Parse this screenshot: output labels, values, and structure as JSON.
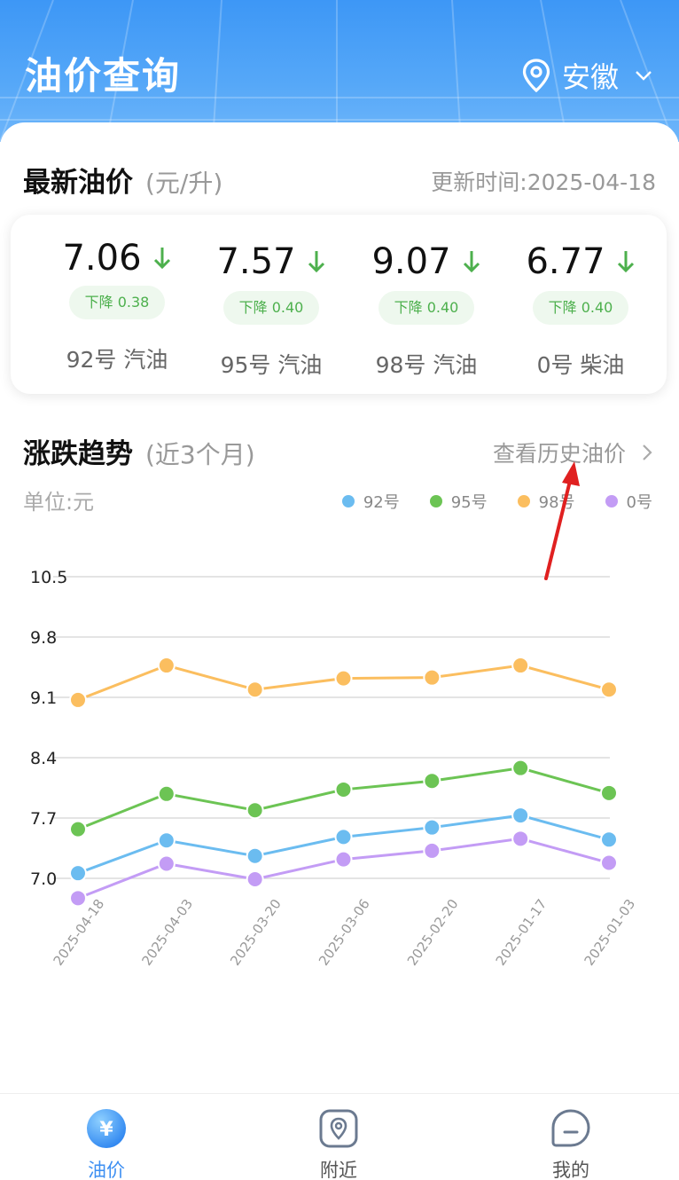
{
  "header": {
    "title": "油价查询",
    "region": "安徽"
  },
  "latest": {
    "title": "最新油价",
    "unit": "(元/升)",
    "update_time": "更新时间:2025-04-18",
    "items": [
      {
        "price": "7.06",
        "change": "下降 0.38",
        "name": "92号 汽油"
      },
      {
        "price": "7.57",
        "change": "下降 0.40",
        "name": "95号 汽油"
      },
      {
        "price": "9.07",
        "change": "下降 0.40",
        "name": "98号 汽油"
      },
      {
        "price": "6.77",
        "change": "下降 0.40",
        "name": "0号 柴油"
      }
    ]
  },
  "trend": {
    "title": "涨跌趋势",
    "range": "(近3个月)",
    "history_link": "查看历史油价",
    "unit": "单位:元"
  },
  "chart_data": {
    "type": "line",
    "x": [
      "2025-04-18",
      "2025-04-03",
      "2025-03-20",
      "2025-03-06",
      "2025-02-20",
      "2025-01-17",
      "2025-01-03"
    ],
    "y_ticks": [
      "7.0",
      "7.7",
      "8.4",
      "9.1",
      "9.8",
      "10.5"
    ],
    "ylim": [
      6.5,
      10.5
    ],
    "grid": true,
    "legend_position": "top-right",
    "series": [
      {
        "name": "92号",
        "color": "#6bbcf0",
        "values": [
          7.06,
          7.44,
          7.26,
          7.48,
          7.59,
          7.73,
          7.45
        ]
      },
      {
        "name": "95号",
        "color": "#6cc454",
        "values": [
          7.57,
          7.98,
          7.79,
          8.03,
          8.13,
          8.28,
          7.99
        ]
      },
      {
        "name": "98号",
        "color": "#fbbe5f",
        "values": [
          9.07,
          9.47,
          9.19,
          9.32,
          9.33,
          9.47,
          9.19
        ]
      },
      {
        "name": "0号",
        "color": "#c39cf5",
        "values": [
          6.77,
          7.17,
          6.99,
          7.22,
          7.32,
          7.46,
          7.18
        ]
      }
    ]
  },
  "tabs": [
    {
      "label": "油价",
      "active": true
    },
    {
      "label": "附近",
      "active": false
    },
    {
      "label": "我的",
      "active": false
    }
  ],
  "colors": {
    "header_blue": "#3d97f6",
    "tab_active": "#3d8ff2",
    "down_green": "#4db04d",
    "annotation_red": "#e02020"
  }
}
